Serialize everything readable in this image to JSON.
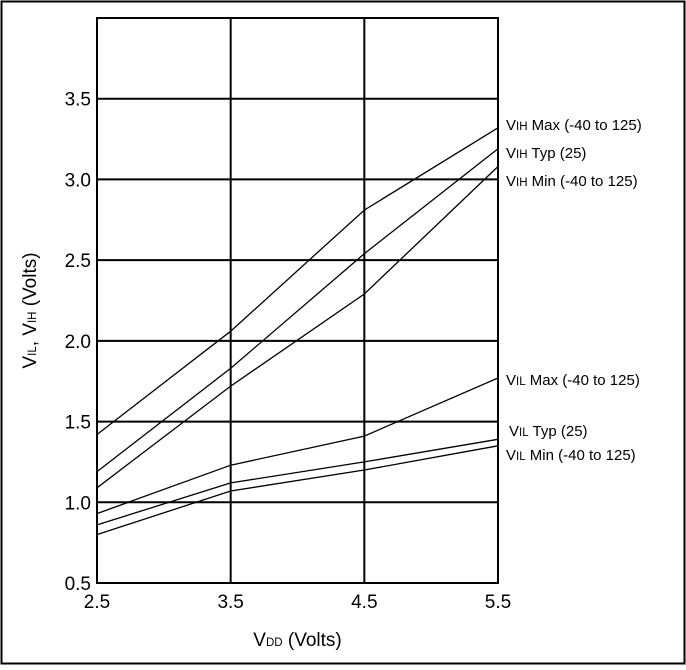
{
  "chart_data": {
    "type": "line",
    "xlabel": {
      "main": "V",
      "sub": "DD",
      "rest": " (Volts)"
    },
    "ylabel": {
      "p1": "V",
      "s1": "IL",
      "p2": ", V",
      "s2": "IH",
      "p3": " (Volts)"
    },
    "xlim": [
      2.5,
      5.5
    ],
    "ylim": [
      0.5,
      4.0
    ],
    "x": [
      2.5,
      3.5,
      4.5,
      5.5
    ],
    "x_ticks": [
      "2.5",
      "3.5",
      "4.5",
      "5.5"
    ],
    "y_ticks": [
      "0.5",
      "1.0",
      "1.5",
      "2.0",
      "2.5",
      "3.0",
      "3.5"
    ],
    "grid": true,
    "series": [
      {
        "name": "VIH Max (-40 to 125)",
        "label": {
          "pre": "V",
          "sub": "IH",
          "post": " Max (-40 to 125)"
        },
        "values": [
          1.42,
          2.06,
          2.81,
          3.32
        ]
      },
      {
        "name": "VIH Typ (25)",
        "label": {
          "pre": "V",
          "sub": "IH",
          "post": " Typ (25)"
        },
        "values": [
          1.19,
          1.83,
          2.54,
          3.19
        ]
      },
      {
        "name": "VIH Min (-40 to 125)",
        "label": {
          "pre": "V",
          "sub": "IH",
          "post": " Min (-40 to 125)"
        },
        "values": [
          1.09,
          1.72,
          2.29,
          3.08
        ]
      },
      {
        "name": "VIL Max (-40 to 125)",
        "label": {
          "pre": "V",
          "sub": "IL",
          "post": " Max (-40 to 125)"
        },
        "values": [
          0.93,
          1.23,
          1.41,
          1.77
        ]
      },
      {
        "name": "VIL Typ (25)",
        "label": {
          "pre": "V",
          "sub": "IL",
          "post": " Typ (25)"
        },
        "values": [
          0.86,
          1.12,
          1.25,
          1.39
        ]
      },
      {
        "name": "VIL Min (-40 to 125)",
        "label": {
          "pre": "V",
          "sub": "IL",
          "post": " Min (-40 to 125)"
        },
        "values": [
          0.8,
          1.07,
          1.2,
          1.35
        ]
      }
    ]
  }
}
